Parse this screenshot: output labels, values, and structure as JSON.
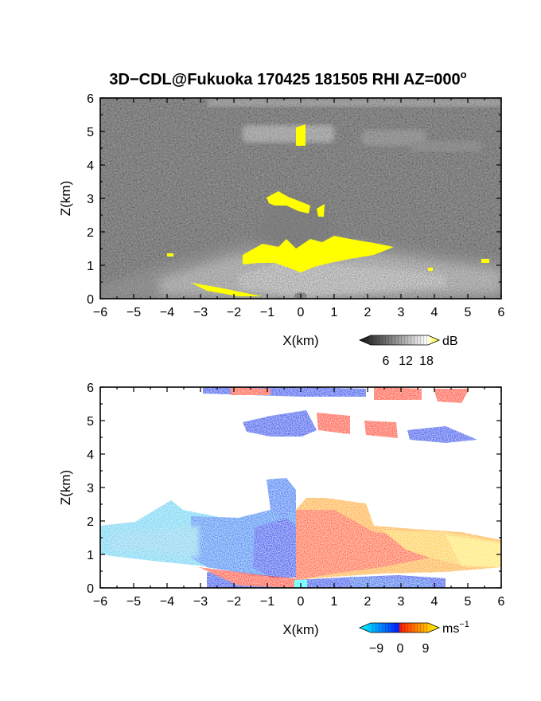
{
  "figure_title": "3D−CDL@Fukuoka 170425 181505 RHI AZ=000",
  "title_superscript": "o",
  "chart_data": [
    {
      "type": "heatmap",
      "panel": "reflectivity",
      "xlabel": "X(km)",
      "ylabel": "Z(km)",
      "xlim": [
        -6,
        6
      ],
      "ylim": [
        0,
        6
      ],
      "xticks": [
        "−6",
        "−5",
        "−4",
        "−3",
        "−2",
        "−1",
        "0",
        "1",
        "2",
        "3",
        "4",
        "5",
        "6"
      ],
      "yticks": [
        "0",
        "1",
        "2",
        "3",
        "4",
        "5",
        "6"
      ],
      "colorbar": {
        "unit": "dB",
        "ticks": [
          "6",
          "12",
          "18"
        ],
        "range": [
          0,
          20
        ],
        "colors": [
          "#101010",
          "#ffffff",
          "#ffff00"
        ]
      },
      "regions": [
        {
          "kind": "noise_background",
          "value": 3
        },
        {
          "kind": "bright_fan",
          "value": 12,
          "x": [
            -6,
            6
          ],
          "z": [
            0,
            1.6
          ]
        },
        {
          "kind": "cloud_band",
          "value": 11,
          "x": [
            -2.8,
            5.2
          ],
          "z": [
            4.6,
            5.3
          ]
        },
        {
          "kind": "cloud_band",
          "value": 10,
          "x": [
            -3,
            6
          ],
          "z": [
            5.8,
            6
          ]
        },
        {
          "kind": "strong_echo",
          "value": 19,
          "x": [
            -1.6,
            2.8
          ],
          "z": [
            1,
            1.7
          ]
        },
        {
          "kind": "strong_echo",
          "value": 19,
          "x": [
            -0.9,
            0.7
          ],
          "z": [
            2.5,
            3.2
          ]
        },
        {
          "kind": "strong_echo",
          "value": 19,
          "x": [
            -0.2,
            0.1
          ],
          "z": [
            4.8,
            5.4
          ]
        }
      ]
    },
    {
      "type": "heatmap",
      "panel": "doppler_velocity",
      "xlabel": "X(km)",
      "ylabel": "Z(km)",
      "xlim": [
        -6,
        6
      ],
      "ylim": [
        0,
        6
      ],
      "xticks": [
        "−6",
        "−5",
        "−4",
        "−3",
        "−2",
        "−1",
        "0",
        "1",
        "2",
        "3",
        "4",
        "5",
        "6"
      ],
      "yticks": [
        "0",
        "1",
        "2",
        "3",
        "4",
        "5",
        "6"
      ],
      "colorbar": {
        "unit": "ms",
        "unit_exponent": "−1",
        "ticks": [
          "−9",
          "0",
          "9"
        ],
        "range": [
          -12,
          12
        ],
        "colors": [
          "#00ffff",
          "#0090ff",
          "#0020ff",
          "#ff2000",
          "#ff9000",
          "#ffff00"
        ]
      },
      "regions": [
        {
          "kind": "outflow_left",
          "velocity": -9,
          "x": [
            -6,
            -0.1
          ],
          "z": [
            0.5,
            2
          ]
        },
        {
          "kind": "outflow_right",
          "velocity": 9,
          "x": [
            0,
            6
          ],
          "z": [
            0.2,
            2.5
          ]
        },
        {
          "kind": "near_ground_mixed",
          "x": [
            -2.8,
            4.5
          ],
          "z": [
            0,
            0.4
          ]
        },
        {
          "kind": "upper_cloud_mixed",
          "x": [
            -1,
            1.4
          ],
          "z": [
            4.8,
            5.4
          ]
        },
        {
          "kind": "upper_cloud_mixed",
          "x": [
            2,
            5.3
          ],
          "z": [
            4.3,
            5
          ]
        },
        {
          "kind": "top_cloud_mixed",
          "x": [
            -3,
            5
          ],
          "z": [
            5.75,
            6
          ]
        }
      ]
    }
  ]
}
